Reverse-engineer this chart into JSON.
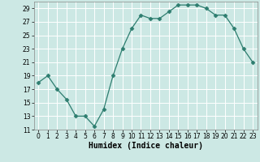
{
  "x": [
    0,
    1,
    2,
    3,
    4,
    5,
    6,
    7,
    8,
    9,
    10,
    11,
    12,
    13,
    14,
    15,
    16,
    17,
    18,
    19,
    20,
    21,
    22,
    23
  ],
  "y": [
    18,
    19,
    17,
    15.5,
    13,
    13,
    11.5,
    14,
    19,
    23,
    26,
    28,
    27.5,
    27.5,
    28.5,
    29.5,
    29.5,
    29.5,
    29,
    28,
    28,
    26,
    23,
    21
  ],
  "line_color": "#2d7d6f",
  "marker": "D",
  "marker_size": 2.5,
  "bg_color": "#cce8e4",
  "grid_color": "#ffffff",
  "xlabel": "Humidex (Indice chaleur)",
  "ylim": [
    11,
    30
  ],
  "xlim": [
    -0.5,
    23.5
  ],
  "yticks": [
    11,
    13,
    15,
    17,
    19,
    21,
    23,
    25,
    27,
    29
  ],
  "xticks": [
    0,
    1,
    2,
    3,
    4,
    5,
    6,
    7,
    8,
    9,
    10,
    11,
    12,
    13,
    14,
    15,
    16,
    17,
    18,
    19,
    20,
    21,
    22,
    23
  ]
}
